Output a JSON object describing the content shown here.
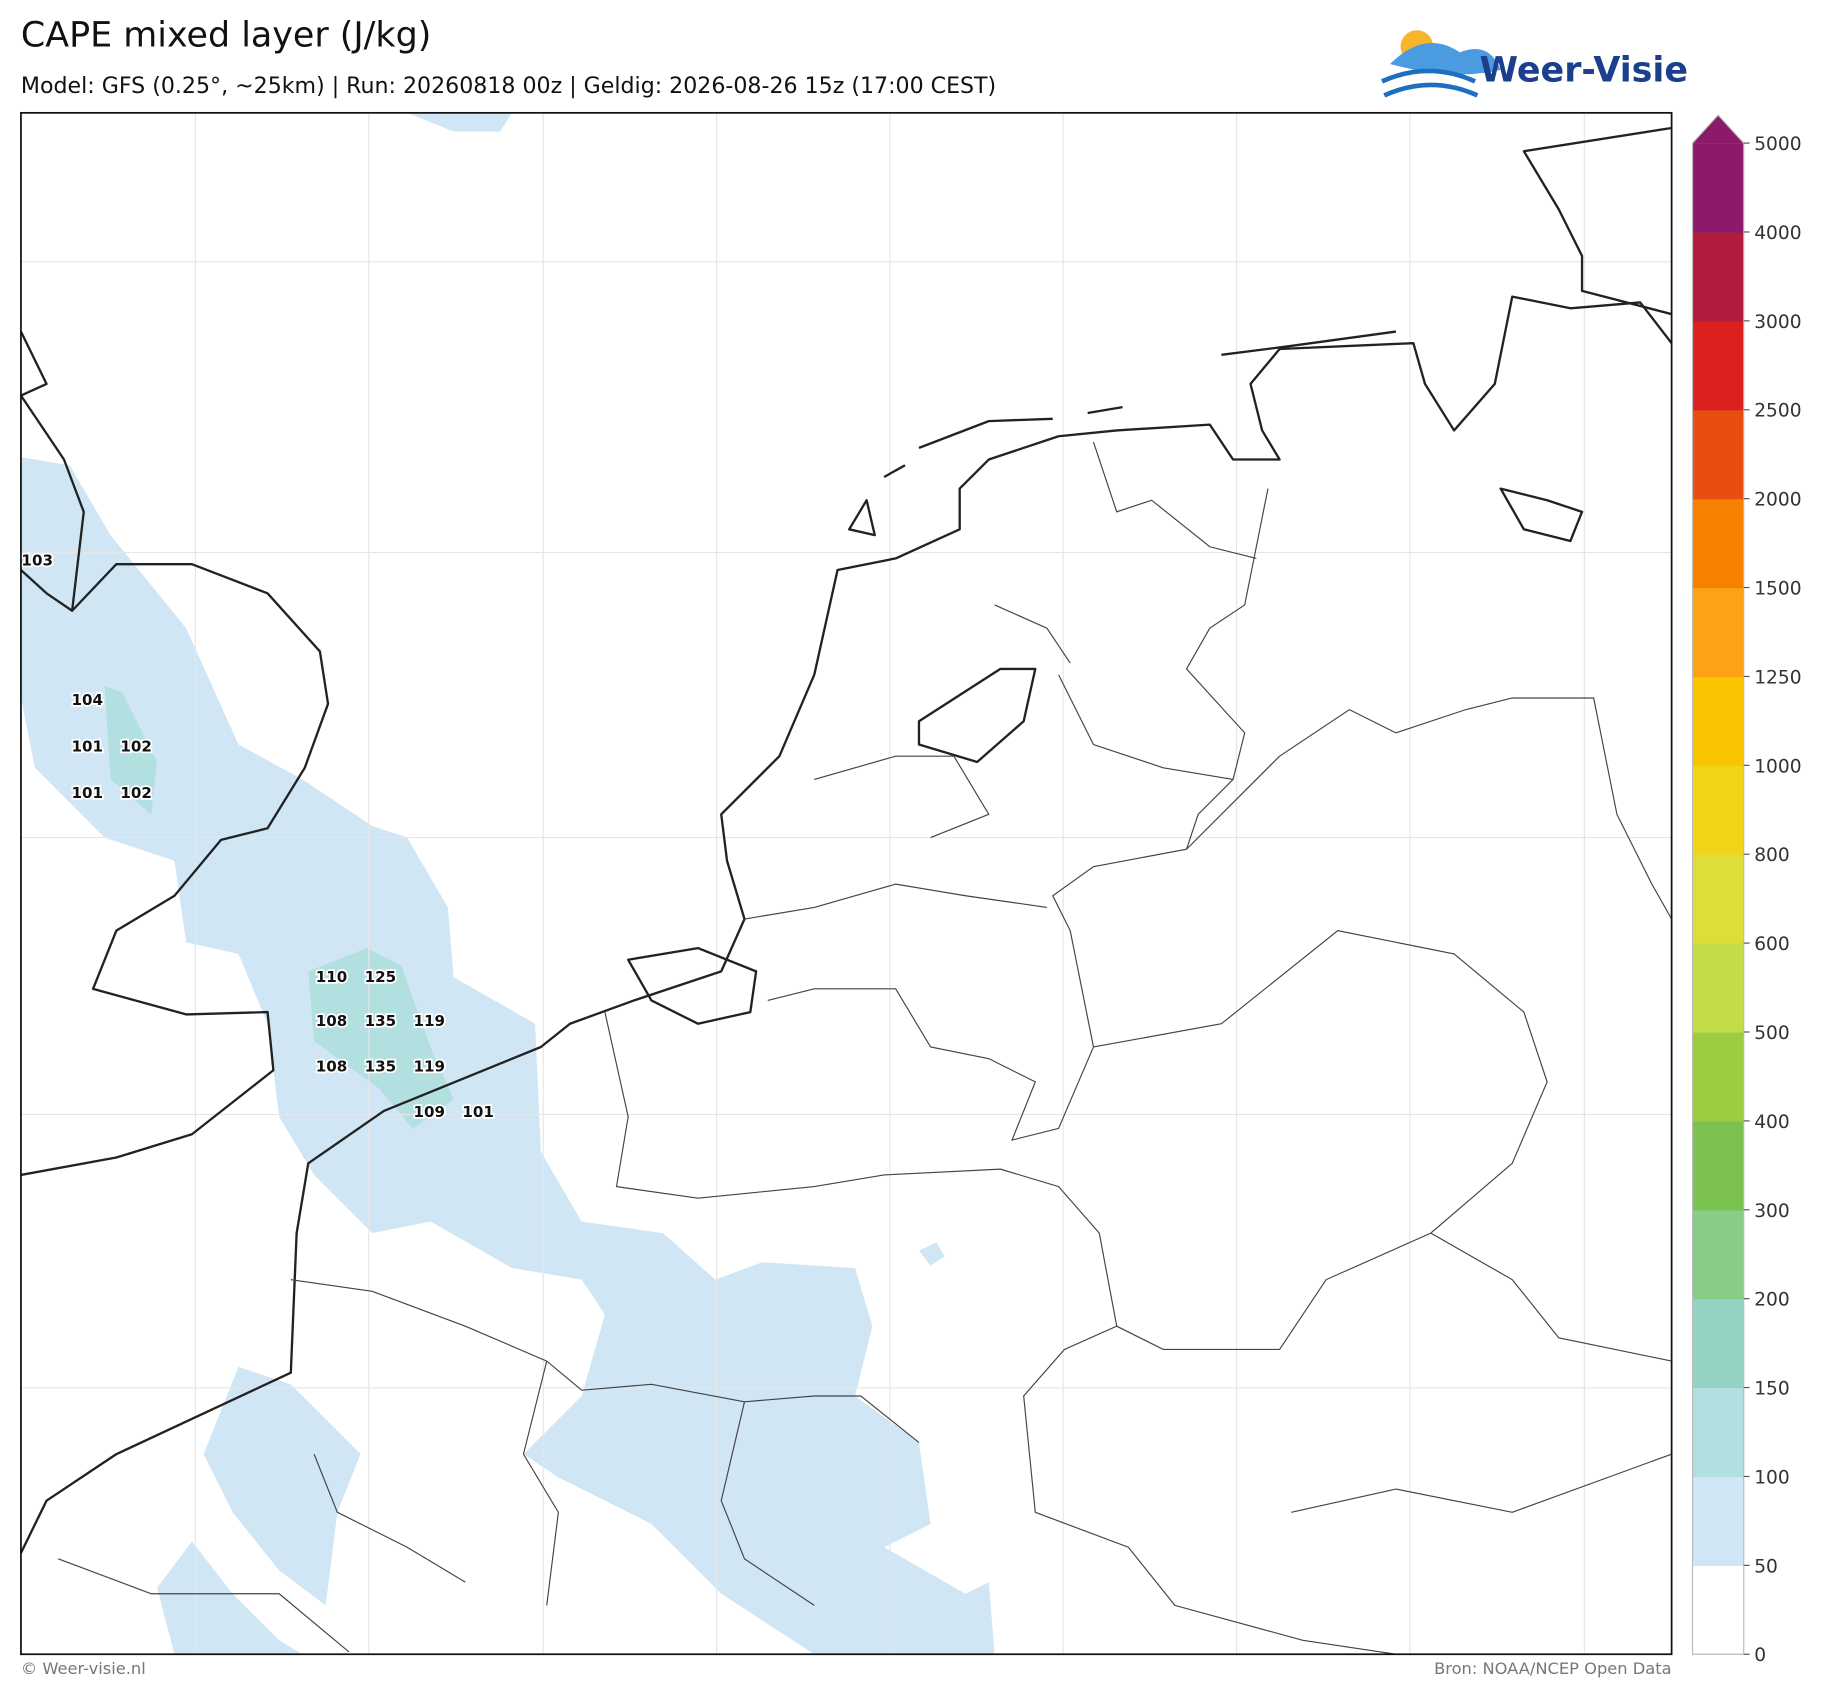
{
  "header": {
    "title": "CAPE mixed layer (J/kg)",
    "subtitle": "Model: GFS (0.25°, ~25km)  |  Run: 20260818 00z  |  Geldig: 2026-08-26 15z (17:00 CEST)",
    "logo": "Weer-Visie"
  },
  "map": {
    "values": [
      103,
      104,
      101,
      102,
      101,
      102,
      110,
      125,
      108,
      135,
      119,
      108,
      135,
      119,
      109,
      101
    ]
  },
  "colorbar": {
    "levels": [
      0,
      50,
      100,
      150,
      200,
      300,
      400,
      500,
      600,
      800,
      1000,
      1250,
      1500,
      2000,
      2500,
      3000,
      4000,
      5000
    ],
    "colors": [
      "#ffffff",
      "#d0e6f5",
      "#b2dfe0",
      "#94d3c3",
      "#88cc88",
      "#7cc250",
      "#9ccc40",
      "#c4dc48",
      "#dede3a",
      "#f0d418",
      "#fac400",
      "#fca214",
      "#f88000",
      "#e84e10",
      "#dc2020",
      "#b21c3c",
      "#8c1a6a"
    ]
  },
  "footer": {
    "left": "© Weer-visie.nl",
    "right": "Bron: NOAA/NCEP Open Data"
  }
}
